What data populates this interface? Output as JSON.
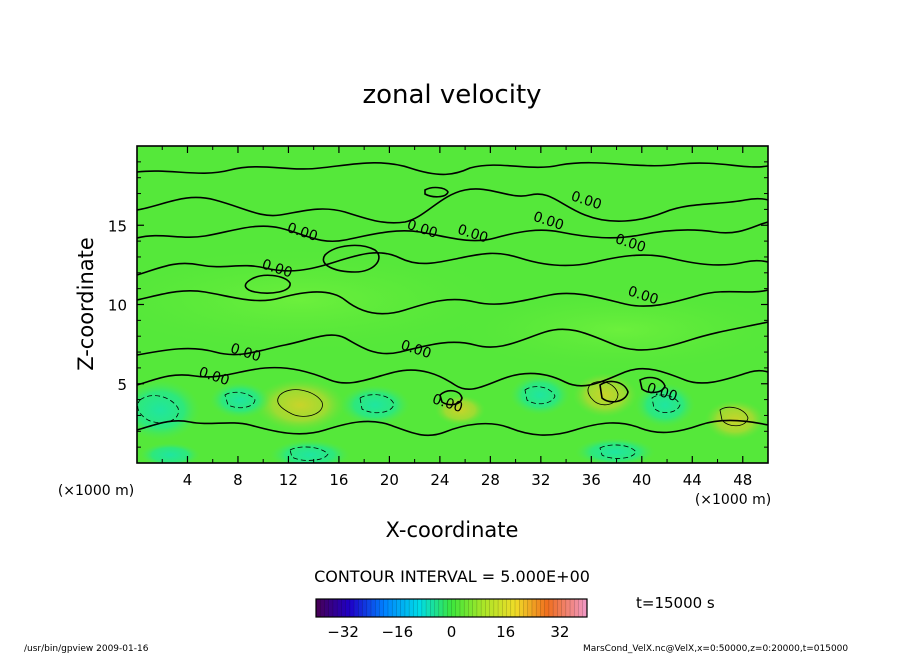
{
  "chart_data": {
    "type": "heatmap",
    "title": "zonal velocity",
    "xlabel": "X-coordinate",
    "ylabel": "Z-coordinate",
    "x_unit_label": "(×1000 m)",
    "z_unit_label": "(×1000 m)",
    "xlim": [
      0,
      50
    ],
    "zlim": [
      0,
      20
    ],
    "x_ticks": [
      4,
      8,
      12,
      16,
      20,
      24,
      28,
      32,
      36,
      40,
      44,
      48
    ],
    "z_ticks": [
      5,
      10,
      15
    ],
    "contour_interval_text": "CONTOUR INTERVAL = 5.000E+00",
    "contour_label_value": "0.00",
    "time_text": "t=15000 s",
    "colorbar": {
      "range": [
        -40,
        40
      ],
      "ticks": [
        -32,
        -16,
        0,
        16,
        32
      ],
      "tick_labels": [
        "−32",
        "−16",
        "0",
        "16",
        "32"
      ]
    },
    "contour_labels": [
      {
        "x": 13,
        "z": 14.3,
        "text": "0.00"
      },
      {
        "x": 11,
        "z": 12.0,
        "text": "0.00"
      },
      {
        "x": 22.5,
        "z": 14.5,
        "text": "0.00"
      },
      {
        "x": 26.5,
        "z": 14.2,
        "text": "0.00"
      },
      {
        "x": 32.5,
        "z": 15.0,
        "text": "0.00"
      },
      {
        "x": 35.5,
        "z": 16.3,
        "text": "0.00"
      },
      {
        "x": 39,
        "z": 13.6,
        "text": "0.00"
      },
      {
        "x": 40,
        "z": 10.3,
        "text": "0.00"
      },
      {
        "x": 8.5,
        "z": 6.7,
        "text": "0.00"
      },
      {
        "x": 22,
        "z": 6.9,
        "text": "0.00"
      },
      {
        "x": 6,
        "z": 5.2,
        "text": "0.00"
      },
      {
        "x": 24.5,
        "z": 3.5,
        "text": "0.00"
      },
      {
        "x": 41.5,
        "z": 4.2,
        "text": "0.00"
      }
    ]
  },
  "footer": {
    "left": "/usr/bin/gpview  2009-01-16",
    "right": "MarsCond_VelX.nc@VelX,x=0:50000,z=0:20000,t=015000"
  },
  "colors": {
    "background_field": "#55e83a",
    "positive_blob": "#9cdc32",
    "negative_blob": "#2ee87a",
    "contour": "#000000"
  }
}
